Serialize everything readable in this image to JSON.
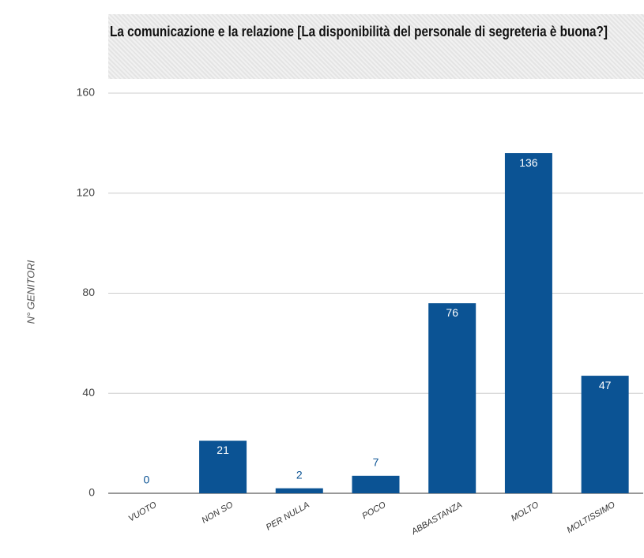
{
  "chart_data": {
    "type": "bar",
    "title": "La comunicazione e la relazione [La disponibilità del personale di segreteria è buona?]",
    "y_label": "N° GENITORI",
    "categories": [
      "VUOTO",
      "NON SO",
      "PER NULLA",
      "POCO",
      "ABBASTANZA",
      "MOLTO",
      "MOLTISSIMO"
    ],
    "values": [
      0,
      21,
      2,
      7,
      76,
      136,
      47
    ],
    "color": "#0b5394",
    "ylim": [
      0,
      160
    ],
    "yticks": [
      0,
      40,
      80,
      120,
      160
    ],
    "grid": true
  }
}
